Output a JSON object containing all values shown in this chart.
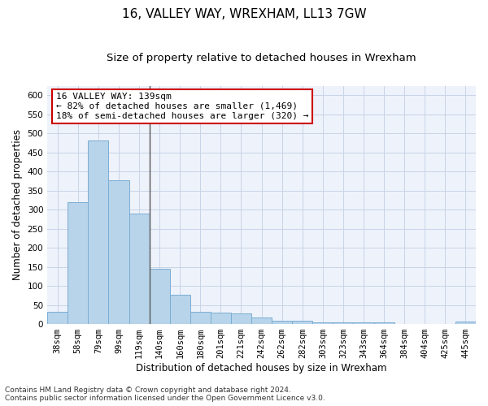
{
  "title": "16, VALLEY WAY, WREXHAM, LL13 7GW",
  "subtitle": "Size of property relative to detached houses in Wrexham",
  "xlabel": "Distribution of detached houses by size in Wrexham",
  "ylabel": "Number of detached properties",
  "categories": [
    "38sqm",
    "58sqm",
    "79sqm",
    "99sqm",
    "119sqm",
    "140sqm",
    "160sqm",
    "180sqm",
    "201sqm",
    "221sqm",
    "242sqm",
    "262sqm",
    "282sqm",
    "303sqm",
    "323sqm",
    "343sqm",
    "364sqm",
    "384sqm",
    "404sqm",
    "425sqm",
    "445sqm"
  ],
  "values": [
    32,
    320,
    482,
    376,
    290,
    145,
    76,
    32,
    30,
    28,
    17,
    9,
    8,
    5,
    5,
    5,
    5,
    0,
    0,
    0,
    6
  ],
  "bar_color": "#b8d4ea",
  "bar_edge_color": "#7aadd4",
  "highlight_index": 5,
  "highlight_line_color": "#555555",
  "annotation_text": "16 VALLEY WAY: 139sqm\n← 82% of detached houses are smaller (1,469)\n18% of semi-detached houses are larger (320) →",
  "annotation_box_color": "#ffffff",
  "annotation_box_edge_color": "#cc0000",
  "ylim": [
    0,
    625
  ],
  "yticks": [
    0,
    50,
    100,
    150,
    200,
    250,
    300,
    350,
    400,
    450,
    500,
    550,
    600
  ],
  "grid_color": "#c8d4e8",
  "background_color": "#eef2fa",
  "footer_text": "Contains HM Land Registry data © Crown copyright and database right 2024.\nContains public sector information licensed under the Open Government Licence v3.0.",
  "title_fontsize": 11,
  "subtitle_fontsize": 9.5,
  "xlabel_fontsize": 8.5,
  "ylabel_fontsize": 8.5,
  "tick_fontsize": 7.5,
  "annotation_fontsize": 8,
  "footer_fontsize": 6.5
}
